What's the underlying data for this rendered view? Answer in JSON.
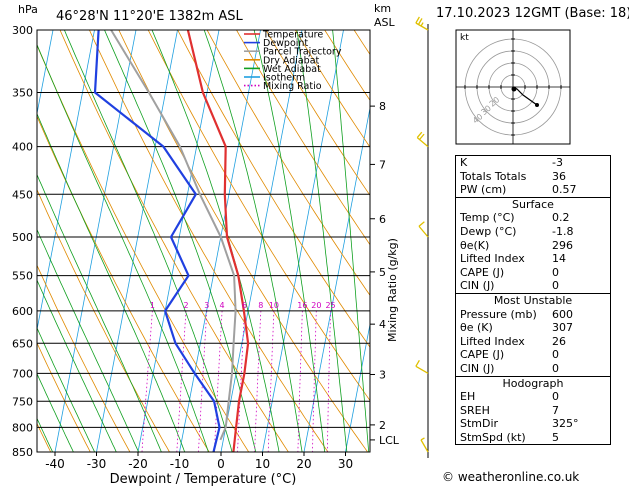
{
  "header": {
    "location": "46°28'N  11°20'E  1382m  ASL",
    "timestamp": "17.10.2023  12GMT  (Base: 18)",
    "pressure_unit": "hPa",
    "km_label": "km",
    "asl_label": "ASL"
  },
  "legend": [
    "Temperature",
    "Dewpoint",
    "Parcel Trajectory",
    "Dry Adiabat",
    "Wet Adiabat",
    "Isotherm",
    "Mixing Ratio"
  ],
  "colors": {
    "temperature": "#e03030",
    "dewpoint": "#2040e0",
    "parcel": "#a0a0a0",
    "dry_adiabat": "#e08a00",
    "wet_adiabat": "#10a020",
    "isotherm": "#20a0e0",
    "mixing_ratio": "#d000c0",
    "wind": "#e0c000"
  },
  "chart_data": {
    "type": "line",
    "title": "",
    "xlabel": "Dewpoint / Temperature (°C)",
    "ylabel": "Mixing Ratio (g/kg)",
    "pressure_levels": [
      300,
      350,
      400,
      450,
      500,
      550,
      600,
      650,
      700,
      750,
      800,
      850
    ],
    "x_ticks": [
      -40,
      -30,
      -20,
      -10,
      0,
      10,
      20,
      30
    ],
    "km_ticks": [
      {
        "km": "8",
        "p": 362
      },
      {
        "km": "7",
        "p": 418
      },
      {
        "km": "6",
        "p": 478
      },
      {
        "km": "5",
        "p": 545
      },
      {
        "km": "4",
        "p": 620
      },
      {
        "km": "3",
        "p": 702
      },
      {
        "km": "2",
        "p": 795
      },
      {
        "km": "LCL",
        "p": 825
      }
    ],
    "mixing_ratio_labels": [
      {
        "label": "1",
        "w": 1
      },
      {
        "label": "2",
        "w": 2
      },
      {
        "label": "3",
        "w": 3
      },
      {
        "label": "4",
        "w": 4
      },
      {
        "label": "6",
        "w": 6
      },
      {
        "label": "8",
        "w": 8
      },
      {
        "label": "10",
        "w": 10
      },
      {
        "label": "16",
        "w": 16
      },
      {
        "label": "20",
        "w": 20
      },
      {
        "label": "25",
        "w": 25
      }
    ],
    "series": [
      {
        "name": "Temperature",
        "points": [
          [
            300,
            -27.5
          ],
          [
            350,
            -21
          ],
          [
            400,
            -13
          ],
          [
            450,
            -11
          ],
          [
            500,
            -8.5
          ],
          [
            550,
            -4
          ],
          [
            600,
            -1
          ],
          [
            650,
            1.5
          ],
          [
            700,
            2
          ],
          [
            750,
            2
          ],
          [
            800,
            2.5
          ],
          [
            850,
            3
          ]
        ]
      },
      {
        "name": "Dewpoint",
        "points": [
          [
            300,
            -49
          ],
          [
            350,
            -47
          ],
          [
            400,
            -28
          ],
          [
            450,
            -18
          ],
          [
            500,
            -22
          ],
          [
            550,
            -16
          ],
          [
            600,
            -20
          ],
          [
            650,
            -16
          ],
          [
            700,
            -10
          ],
          [
            750,
            -4
          ],
          [
            800,
            -1.5
          ],
          [
            850,
            -1.8
          ]
        ]
      },
      {
        "name": "Parcel Trajectory",
        "points": [
          [
            300,
            -46
          ],
          [
            350,
            -34
          ],
          [
            400,
            -24
          ],
          [
            450,
            -17
          ],
          [
            500,
            -10
          ],
          [
            550,
            -5
          ],
          [
            600,
            -3
          ],
          [
            650,
            -2
          ],
          [
            700,
            -1
          ],
          [
            750,
            -0.5
          ],
          [
            800,
            0
          ],
          [
            825,
            -0.7
          ]
        ]
      }
    ],
    "wind_barbs": [
      {
        "p": 300,
        "dir": 300,
        "kt": 25
      },
      {
        "p": 400,
        "dir": 310,
        "kt": 20
      },
      {
        "p": 500,
        "dir": 320,
        "kt": 10
      },
      {
        "p": 700,
        "dir": 300,
        "kt": 10
      },
      {
        "p": 850,
        "dir": 330,
        "kt": 5
      }
    ]
  },
  "hodograph": {
    "label": "kt",
    "ring_labels": [
      "20",
      "30",
      "40"
    ]
  },
  "stats": [
    {
      "rows": [
        {
          "k": "K",
          "v": "-3"
        },
        {
          "k": "Totals Totals",
          "v": "36"
        },
        {
          "k": "PW (cm)",
          "v": "0.57"
        }
      ]
    },
    {
      "title": "Surface",
      "rows": [
        {
          "k": "Temp (°C)",
          "v": "0.2"
        },
        {
          "k": "Dewp (°C)",
          "v": "-1.8"
        },
        {
          "k": "θe(K)",
          "v": "296"
        },
        {
          "k": "Lifted Index",
          "v": "14"
        },
        {
          "k": "CAPE (J)",
          "v": "0"
        },
        {
          "k": "CIN (J)",
          "v": "0"
        }
      ]
    },
    {
      "title": "Most Unstable",
      "rows": [
        {
          "k": "Pressure (mb)",
          "v": "600"
        },
        {
          "k": "θe (K)",
          "v": "307"
        },
        {
          "k": "Lifted Index",
          "v": "26"
        },
        {
          "k": "CAPE (J)",
          "v": "0"
        },
        {
          "k": "CIN (J)",
          "v": "0"
        }
      ]
    },
    {
      "title": "Hodograph",
      "rows": [
        {
          "k": "EH",
          "v": "0"
        },
        {
          "k": "SREH",
          "v": "7"
        },
        {
          "k": "StmDir",
          "v": "325°"
        },
        {
          "k": "StmSpd (kt)",
          "v": "5"
        }
      ]
    }
  ],
  "credit": "© weatheronline.co.uk"
}
